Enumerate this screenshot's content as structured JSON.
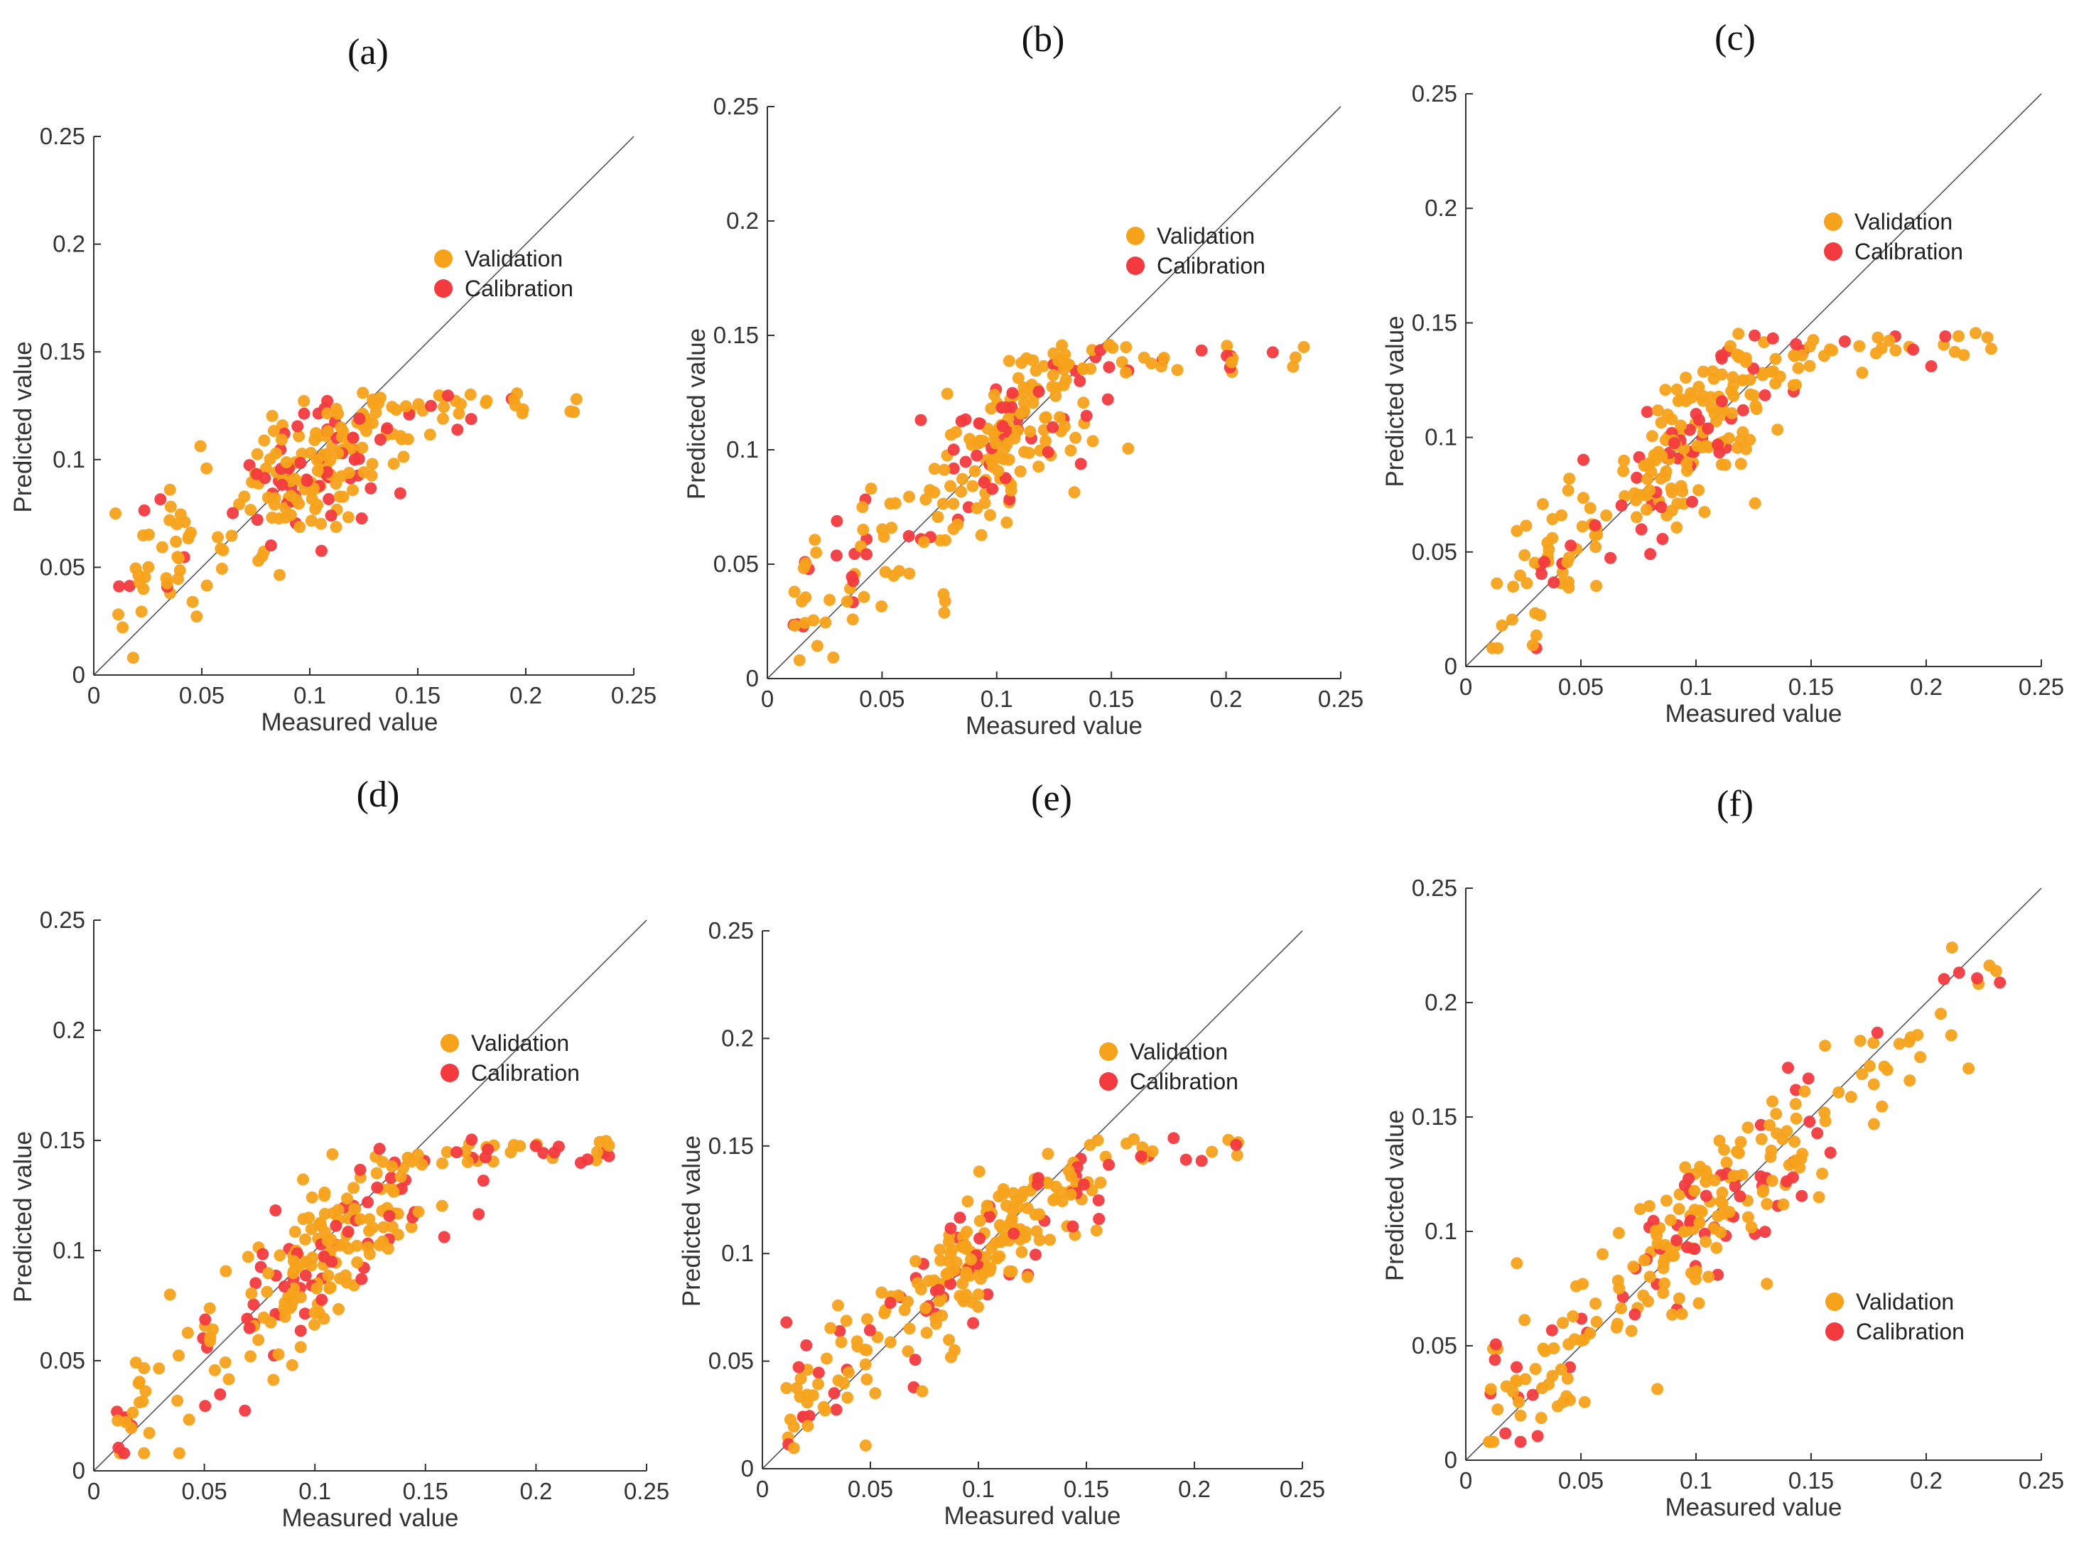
{
  "colors": {
    "validation": "#f7a21b",
    "calibration": "#f23a3f",
    "axis": "#333333",
    "diagonal": "#555555"
  },
  "chart_data": [
    {
      "type": "scatter",
      "panel": "(a)",
      "title": "",
      "xlabel": "Measured value",
      "ylabel": "Predicted value",
      "xlim": [
        0,
        0.25
      ],
      "ylim": [
        0,
        0.25
      ],
      "xticks": [
        "0",
        "0.05",
        "0.1",
        "0.15",
        "0.2",
        "0.25"
      ],
      "yticks": [
        "0",
        "0.05",
        "0.1",
        "0.15",
        "0.2",
        "0.25"
      ],
      "legend": [
        "Validation",
        "Calibration"
      ],
      "legend_position": "upper-middle",
      "model": {
        "slope": 0.62,
        "intercept": 0.035,
        "cap": 0.125,
        "noise": 0.017,
        "seed": 11
      }
    },
    {
      "type": "scatter",
      "panel": "(b)",
      "title": "",
      "xlabel": "Measured value",
      "ylabel": "Predicted value",
      "xlim": [
        0,
        0.25
      ],
      "ylim": [
        0,
        0.25
      ],
      "xticks": [
        "0",
        "0.05",
        "0.1",
        "0.15",
        "0.2",
        "0.25"
      ],
      "yticks": [
        "0",
        "0.05",
        "0.1",
        "0.15",
        "0.2",
        "0.25"
      ],
      "legend": [
        "Validation",
        "Calibration"
      ],
      "legend_position": "upper-middle",
      "model": {
        "slope": 0.8,
        "intercept": 0.02,
        "cap": 0.14,
        "noise": 0.018,
        "seed": 23
      }
    },
    {
      "type": "scatter",
      "panel": "(c)",
      "title": "",
      "xlabel": "Measured value",
      "ylabel": "Predicted value",
      "xlim": [
        0,
        0.25
      ],
      "ylim": [
        0,
        0.25
      ],
      "xticks": [
        "0",
        "0.05",
        "0.1",
        "0.15",
        "0.2",
        "0.25"
      ],
      "yticks": [
        "0",
        "0.05",
        "0.1",
        "0.15",
        "0.2",
        "0.25"
      ],
      "legend": [
        "Validation",
        "Calibration"
      ],
      "legend_position": "upper-middle",
      "model": {
        "slope": 0.82,
        "intercept": 0.018,
        "cap": 0.14,
        "noise": 0.017,
        "seed": 37
      }
    },
    {
      "type": "scatter",
      "panel": "(d)",
      "title": "",
      "xlabel": "Measured value",
      "ylabel": "Predicted value",
      "xlim": [
        0,
        0.25
      ],
      "ylim": [
        0,
        0.25
      ],
      "xticks": [
        "0",
        "0.05",
        "0.1",
        "0.15",
        "0.2",
        "0.25"
      ],
      "yticks": [
        "0",
        "0.05",
        "0.1",
        "0.15",
        "0.2",
        "0.25"
      ],
      "legend": [
        "Validation",
        "Calibration"
      ],
      "legend_position": "upper-middle",
      "model": {
        "slope": 0.8,
        "intercept": 0.016,
        "cap": 0.145,
        "noise": 0.017,
        "seed": 41
      }
    },
    {
      "type": "scatter",
      "panel": "(e)",
      "title": "",
      "xlabel": "Measured value",
      "ylabel": "Predicted value",
      "xlim": [
        0,
        0.25
      ],
      "ylim": [
        0,
        0.25
      ],
      "xticks": [
        "0",
        "0.05",
        "0.1",
        "0.15",
        "0.2",
        "0.25"
      ],
      "yticks": [
        "0",
        "0.05",
        "0.1",
        "0.15",
        "0.2",
        "0.25"
      ],
      "legend": [
        "Validation",
        "Calibration"
      ],
      "legend_position": "upper-middle",
      "model": {
        "slope": 0.82,
        "intercept": 0.017,
        "cap": 0.148,
        "noise": 0.016,
        "seed": 53
      }
    },
    {
      "type": "scatter",
      "panel": "(f)",
      "title": "",
      "xlabel": "Measured value",
      "ylabel": "Predicted value",
      "xlim": [
        0,
        0.25
      ],
      "ylim": [
        0,
        0.25
      ],
      "xticks": [
        "0",
        "0.05",
        "0.1",
        "0.15",
        "0.2",
        "0.25"
      ],
      "yticks": [
        "0",
        "0.05",
        "0.1",
        "0.15",
        "0.2",
        "0.25"
      ],
      "legend": [
        "Validation",
        "Calibration"
      ],
      "legend_position": "lower-right",
      "model": {
        "slope": 0.88,
        "intercept": 0.012,
        "cap": 0.24,
        "noise": 0.016,
        "seed": 67
      }
    }
  ]
}
